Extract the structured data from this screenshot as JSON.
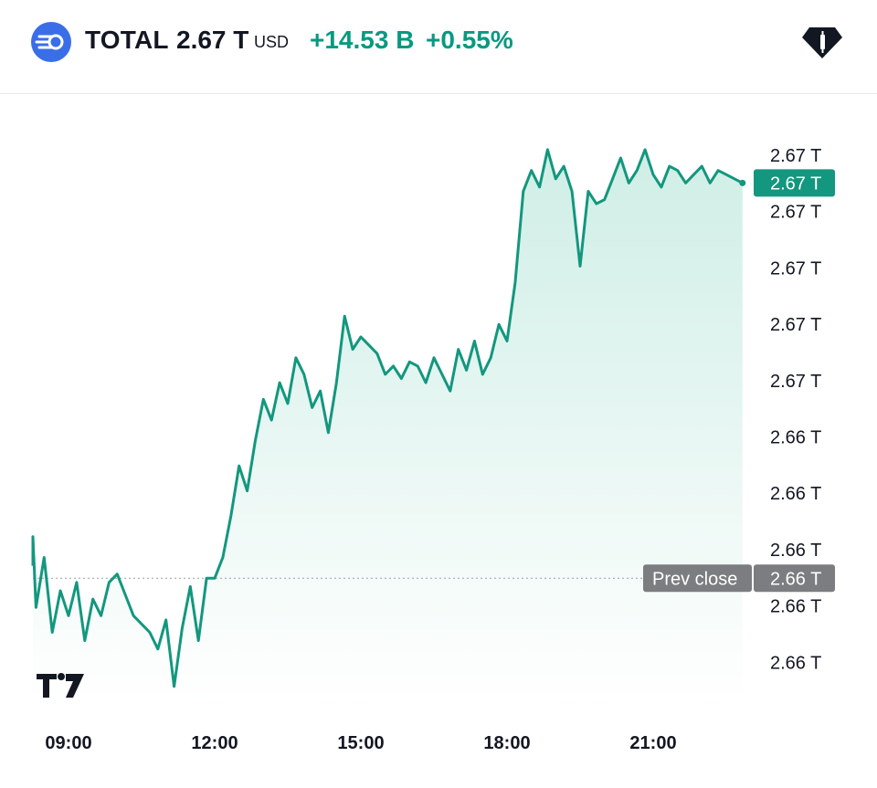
{
  "header": {
    "symbol": "TOTAL",
    "price": "2.67 T",
    "currency": "USD",
    "change": "+14.53 B",
    "change_percent": "+0.55%",
    "logo_icon": "crypto-market-cap-icon",
    "brand_icon": "tradingview-gem-icon"
  },
  "colors": {
    "line": "#13977e",
    "area_top": "#cfeee6",
    "area_bottom": "#ffffff",
    "positive": "#089981",
    "prev_close_bg": "#7b7d80",
    "last_price_bg": "#13977e"
  },
  "chart_data": {
    "type": "area",
    "title": "TOTAL",
    "xlabel": "",
    "ylabel": "",
    "ylim": [
      2.6575,
      2.6715
    ],
    "x_ticks": [
      "09:00",
      "12:00",
      "15:00",
      "18:00",
      "21:00"
    ],
    "y_tick_labels": [
      "2.67 T",
      "2.67 T",
      "2.67 T",
      "2.67 T",
      "2.67 T",
      "2.66 T",
      "2.66 T",
      "2.66 T",
      "2.66 T",
      "2.66 T"
    ],
    "grid": false,
    "prev_close": {
      "label": "Prev close",
      "value_label": "2.66 T",
      "value": 2.6605
    },
    "last_price": {
      "value_label": "2.67 T",
      "value": 2.67
    },
    "watermark": "TV",
    "series": [
      {
        "x": [
          "08:00",
          "08:10",
          "08:20",
          "08:30",
          "08:40",
          "08:50",
          "09:00",
          "09:10",
          "09:20",
          "09:30",
          "09:40",
          "09:50",
          "10:00",
          "10:10",
          "10:20",
          "10:30",
          "10:40",
          "10:50",
          "11:00",
          "11:10",
          "11:20",
          "11:30",
          "11:40",
          "11:50",
          "12:00",
          "12:10",
          "12:20",
          "12:30",
          "12:40",
          "12:50",
          "13:00",
          "13:10",
          "13:20",
          "13:30",
          "13:40",
          "13:50",
          "14:00",
          "14:10",
          "14:20",
          "14:30",
          "14:40",
          "14:50",
          "15:00",
          "15:10",
          "15:20",
          "15:30",
          "15:40",
          "15:50",
          "16:00",
          "16:10",
          "16:20",
          "16:30",
          "16:40",
          "16:50",
          "17:00",
          "17:10",
          "17:20",
          "17:30",
          "17:40",
          "17:50",
          "18:00",
          "18:10",
          "18:20",
          "18:30",
          "18:40",
          "18:50",
          "19:00",
          "19:10",
          "19:20",
          "19:30",
          "19:40",
          "19:50",
          "20:00",
          "20:10",
          "20:20",
          "20:30",
          "20:40",
          "20:50",
          "21:00",
          "21:10",
          "21:20",
          "21:30",
          "21:40",
          "21:50",
          "22:00",
          "22:10",
          "22:20",
          "22:30",
          "22:40",
          "22:50"
        ],
        "values": [
          2.6608,
          2.6615,
          2.6598,
          2.661,
          2.6592,
          2.6602,
          2.6596,
          2.6604,
          2.659,
          2.66,
          2.6596,
          2.6604,
          2.6606,
          2.6601,
          2.6596,
          2.6594,
          2.6592,
          2.6588,
          2.6595,
          2.6579,
          2.6593,
          2.6603,
          2.659,
          2.6605,
          2.6605,
          2.661,
          2.662,
          2.6632,
          2.6626,
          2.6638,
          2.6648,
          2.6643,
          2.6652,
          2.6647,
          2.6658,
          2.6654,
          2.6646,
          2.665,
          2.664,
          2.6652,
          2.6668,
          2.666,
          2.6663,
          2.6661,
          2.6659,
          2.6654,
          2.6656,
          2.6653,
          2.6657,
          2.6656,
          2.6652,
          2.6658,
          2.6654,
          2.665,
          2.666,
          2.6655,
          2.6662,
          2.6654,
          2.6658,
          2.6666,
          2.6662,
          2.6676,
          2.6698,
          2.6703,
          2.6699,
          2.6708,
          2.6701,
          2.6704,
          2.6698,
          2.668,
          2.6698,
          2.6695,
          2.6696,
          2.6701,
          2.6706,
          2.67,
          2.6703,
          2.6708,
          2.6702,
          2.6699,
          2.6704,
          2.6703,
          2.67,
          2.6702,
          2.6704,
          2.67,
          2.6703,
          2.6702,
          2.6701,
          2.67
        ]
      }
    ]
  }
}
